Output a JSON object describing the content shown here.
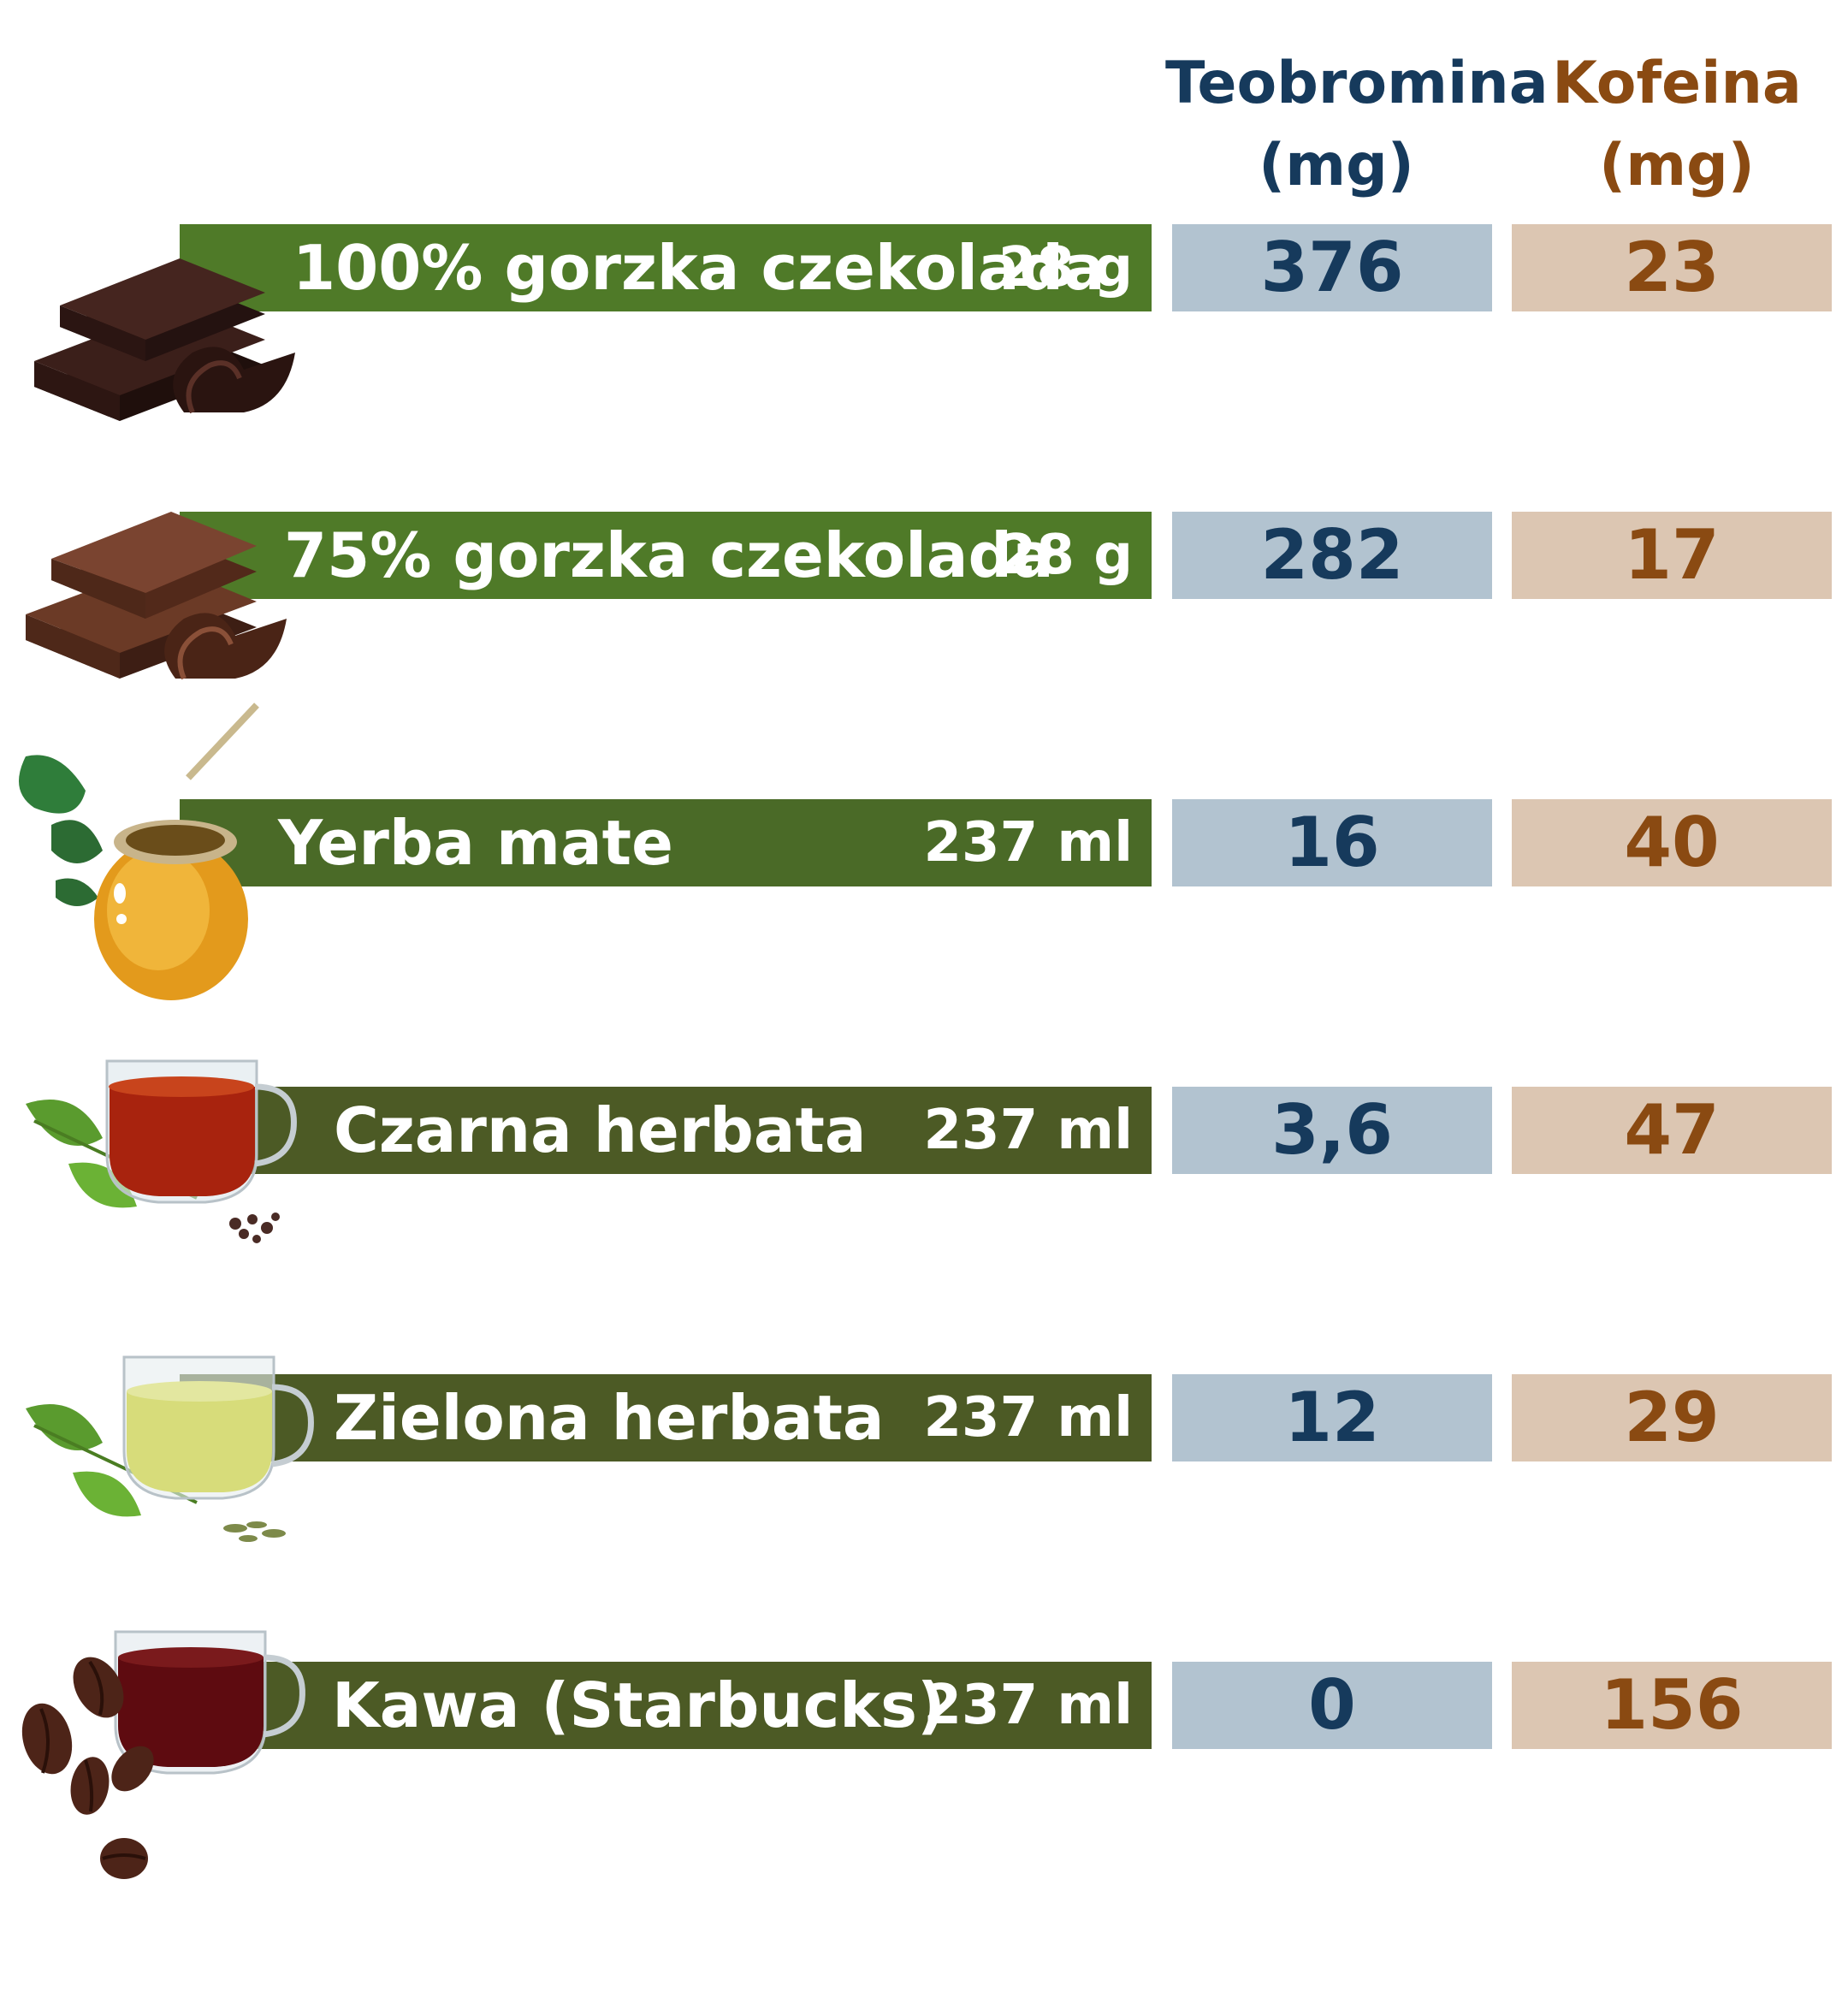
{
  "headers": {
    "teobromina": [
      "Teobromina",
      "(mg)"
    ],
    "kofeina": [
      "Kofeina",
      "(mg)"
    ]
  },
  "colors": {
    "bar_green_1": "#4f7a28",
    "bar_green_2": "#4a6a27",
    "bar_olive": "#4c5a25",
    "teo_cell": "#b2c3d0",
    "teo_text": "#163a5c",
    "kof_cell": "#dcc6b2",
    "kof_text": "#8a4a12"
  },
  "rows": [
    {
      "name": "100% gorzka czekolada",
      "portion": "28 g",
      "teobromina": "376",
      "kofeina": "23",
      "icon": "dark-chocolate-icon"
    },
    {
      "name": "75% gorzka czekolada",
      "portion": "28 g",
      "teobromina": "282",
      "kofeina": "17",
      "icon": "milk-chocolate-icon"
    },
    {
      "name": "Yerba mate",
      "portion": "237 ml",
      "teobromina": "16",
      "kofeina": "40",
      "icon": "yerba-mate-gourd-icon"
    },
    {
      "name": "Czarna herbata",
      "portion": "237 ml",
      "teobromina": "3,6",
      "kofeina": "47",
      "icon": "black-tea-cup-icon"
    },
    {
      "name": "Zielona herbata",
      "portion": "237 ml",
      "teobromina": "12",
      "kofeina": "29",
      "icon": "green-tea-cup-icon"
    },
    {
      "name": "Kawa (Starbucks)",
      "portion": "237 ml",
      "teobromina": "0",
      "kofeina": "156",
      "icon": "coffee-cup-icon"
    }
  ]
}
